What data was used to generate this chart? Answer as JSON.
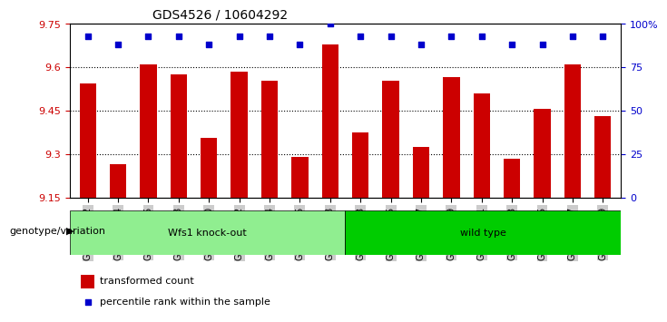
{
  "title": "GDS4526 / 10604292",
  "categories": [
    "GSM825432",
    "GSM825434",
    "GSM825436",
    "GSM825438",
    "GSM825440",
    "GSM825442",
    "GSM825444",
    "GSM825446",
    "GSM825448",
    "GSM825433",
    "GSM825435",
    "GSM825437",
    "GSM825439",
    "GSM825441",
    "GSM825443",
    "GSM825445",
    "GSM825447",
    "GSM825449"
  ],
  "bar_values": [
    9.545,
    9.265,
    9.61,
    9.575,
    9.355,
    9.585,
    9.555,
    9.29,
    9.68,
    9.375,
    9.555,
    9.325,
    9.565,
    9.51,
    9.285,
    9.455,
    9.61,
    9.43
  ],
  "percentile_values": [
    93,
    88,
    93,
    93,
    88,
    93,
    93,
    88,
    100,
    93,
    93,
    88,
    93,
    93,
    88,
    88,
    93,
    93
  ],
  "group1_label": "Wfs1 knock-out",
  "group2_label": "wild type",
  "group1_count": 9,
  "group2_count": 9,
  "y_min": 9.15,
  "y_max": 9.75,
  "y_ticks": [
    9.15,
    9.3,
    9.45,
    9.6,
    9.75
  ],
  "y_tick_labels": [
    "9.15",
    "9.3",
    "9.45",
    "9.6",
    "9.75"
  ],
  "right_y_ticks": [
    0,
    25,
    50,
    75,
    100
  ],
  "right_y_tick_labels": [
    "0",
    "25",
    "50",
    "75",
    "100%"
  ],
  "bar_color": "#cc0000",
  "dot_color": "#0000cc",
  "group1_bg": "#90ee90",
  "group2_bg": "#00cc00",
  "tick_label_bg": "#cccccc",
  "legend_bar_label": "transformed count",
  "legend_dot_label": "percentile rank within the sample",
  "genotype_label": "genotype/variation",
  "figsize": [
    7.41,
    3.54
  ],
  "dpi": 100
}
